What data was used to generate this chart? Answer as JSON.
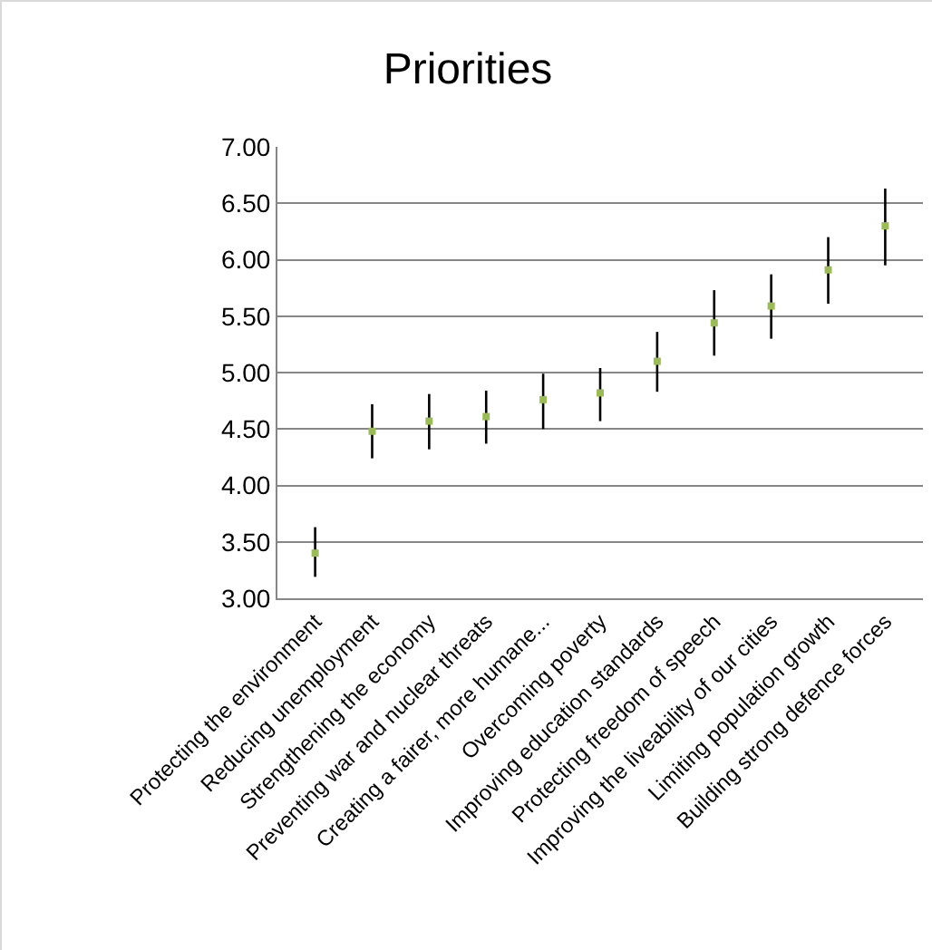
{
  "chart_data": {
    "type": "scatter",
    "title": "Priorities",
    "categories": [
      "Protecting the environment",
      "Reducing unemployment",
      "Strengthening the economy",
      "Preventing war and nuclear threats",
      "Creating a fairer, more humane...",
      "Overcoming poverty",
      "Improving education standards",
      "Protecting freedom of speech",
      "Improving the liveability of our cities",
      "Limiting population growth",
      "Building strong defence forces"
    ],
    "values": [
      3.4,
      4.48,
      4.57,
      4.61,
      4.76,
      4.82,
      5.1,
      5.44,
      5.59,
      5.91,
      6.3
    ],
    "errors": [
      [
        3.19,
        3.63
      ],
      [
        4.24,
        4.72
      ],
      [
        4.32,
        4.81
      ],
      [
        4.37,
        4.84
      ],
      [
        4.5,
        4.99
      ],
      [
        4.57,
        5.04
      ],
      [
        4.83,
        5.36
      ],
      [
        5.15,
        5.73
      ],
      [
        5.3,
        5.87
      ],
      [
        5.61,
        6.2
      ],
      [
        5.95,
        6.63
      ]
    ],
    "color": "#9bbb59",
    "ylim": [
      3,
      7
    ],
    "yticks": [
      {
        "value": 3,
        "label": "3.00"
      },
      {
        "value": 3.5,
        "label": "3.50"
      },
      {
        "value": 4,
        "label": "4.00"
      },
      {
        "value": 4.5,
        "label": "4.50"
      },
      {
        "value": 5,
        "label": "5.00"
      },
      {
        "value": 5.5,
        "label": "5.50"
      },
      {
        "value": 6,
        "label": "6.00"
      },
      {
        "value": 6.5,
        "label": "6.50"
      },
      {
        "value": 7,
        "label": "7.00"
      }
    ],
    "grid": "y",
    "legend": false,
    "marker": "square"
  }
}
